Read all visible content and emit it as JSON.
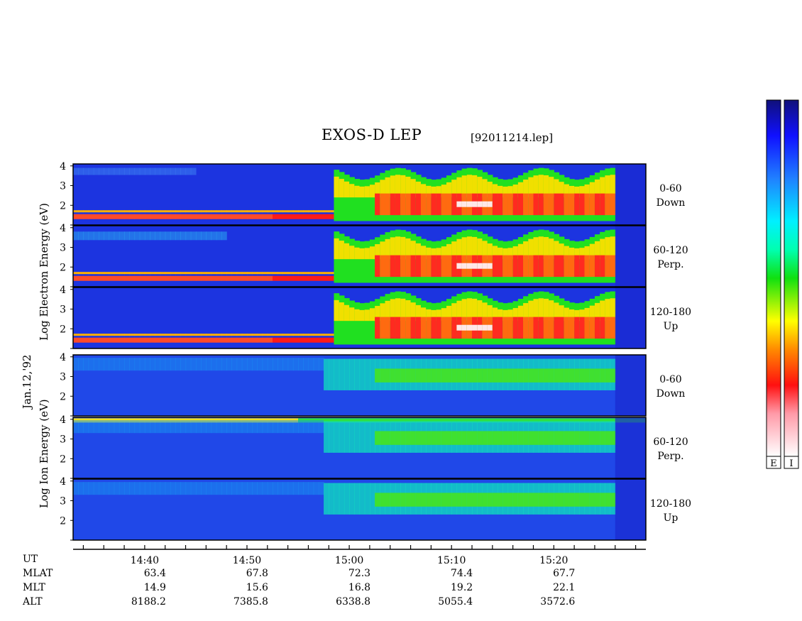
{
  "title": "EXOS-D LEP",
  "file_label": "[92011214.lep]",
  "date_label": "Jan.12,'92",
  "electron_ylabel": [
    "Log",
    "Electron",
    "Energy",
    "(eV)"
  ],
  "ion_ylabel": [
    "Log",
    "Ion",
    "Energy",
    "(eV)"
  ],
  "colorbar_labels": [
    "E",
    "I"
  ],
  "colors": {
    "low": "#1a2fd8",
    "mid": "#18d818",
    "high": "#ff2020",
    "peak": "#fff0f0",
    "frame": "#000000"
  },
  "chart_data": {
    "type": "heatmap",
    "panels": [
      {
        "species": "Electron",
        "pitch": [
          "0-60",
          "Down"
        ],
        "ytick_labels": [
          "4",
          "3",
          "2"
        ]
      },
      {
        "species": "Electron",
        "pitch": [
          "60-120",
          "Perp."
        ],
        "ytick_labels": [
          "4",
          "3",
          "2"
        ]
      },
      {
        "species": "Electron",
        "pitch": [
          "120-180",
          "Up"
        ],
        "ytick_labels": [
          "4",
          "3",
          "2"
        ]
      },
      {
        "species": "Ion",
        "pitch": [
          "0-60",
          "Down"
        ],
        "ytick_labels": [
          "4",
          "3",
          "2"
        ]
      },
      {
        "species": "Ion",
        "pitch": [
          "60-120",
          "Perp."
        ],
        "ytick_labels": [
          "4",
          "3",
          "2"
        ]
      },
      {
        "species": "Ion",
        "pitch": [
          "120-180",
          "Up"
        ],
        "ytick_labels": [
          "4",
          "3",
          "2"
        ]
      }
    ],
    "ylim_log_eV": [
      1,
      4.1
    ],
    "x_ticks": [
      "14:40",
      "14:50",
      "15:00",
      "15:10",
      "15:20"
    ],
    "x_range_minutes": [
      "14:33",
      "15:29"
    ],
    "footer_rows": [
      {
        "label": "UT",
        "values": [
          "",
          "",
          "",
          "",
          ""
        ]
      },
      {
        "label": "MLAT",
        "values": [
          "63.4",
          "67.8",
          "72.3",
          "74.4",
          "67.7"
        ]
      },
      {
        "label": "MLT",
        "values": [
          "14.9",
          "15.6",
          "16.8",
          "19.2",
          "22.1"
        ]
      },
      {
        "label": "ALT",
        "values": [
          "8188.2",
          "7385.8",
          "6338.8",
          "5055.4",
          "3572.6"
        ]
      }
    ]
  }
}
